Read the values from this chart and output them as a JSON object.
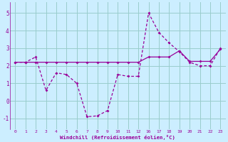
{
  "xlabel": "Windchill (Refroidissement éolien,°C)",
  "bg_color": "#cceeff",
  "line_color": "#990099",
  "grid_color": "#99cccc",
  "line1_y": [
    2.2,
    2.2,
    2.5,
    0.6,
    1.6,
    1.5,
    1.0,
    -0.9,
    -0.85,
    -0.55,
    1.5,
    1.4,
    1.4,
    5.0,
    3.9,
    3.3,
    2.8,
    2.2,
    2.0,
    2.0,
    3.0
  ],
  "line2_y": [
    2.2,
    2.2,
    2.2,
    2.2,
    2.2,
    2.2,
    2.2,
    2.2,
    2.2,
    2.2,
    2.2,
    2.2,
    2.2,
    2.5,
    2.5,
    2.5,
    2.85,
    2.25,
    2.25,
    2.25,
    2.95
  ],
  "xtick_labels": [
    "0",
    "1",
    "2",
    "3",
    "4",
    "5",
    "6",
    "7",
    "8",
    "9",
    "10",
    "11",
    "12",
    "16",
    "17",
    "18",
    "19",
    "20",
    "21",
    "22",
    "23"
  ],
  "yticks": [
    -1,
    0,
    1,
    2,
    3,
    4,
    5
  ],
  "ylim": [
    -1.6,
    5.6
  ],
  "marker_size": 2.0,
  "line_width": 0.9
}
